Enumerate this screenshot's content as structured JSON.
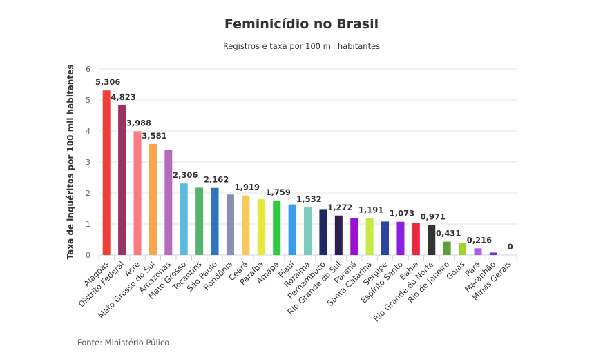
{
  "chart_data": {
    "type": "bar",
    "title": "Feminicídio no Brasil",
    "subtitle": "Registros e taxa por 100 mil habitantes",
    "ylabel": "Taxa de inquéritos por 100 mil habitantes",
    "xlabel": "",
    "ylim": [
      0,
      6
    ],
    "yticks": [
      "0",
      "1",
      "2",
      "3",
      "4",
      "5",
      "6"
    ],
    "grid": true,
    "categories": [
      "Alagoas",
      "Distrito Federal",
      "Acre",
      "Mato Grosso do Sul",
      "Amazonas",
      "Mato Grosso",
      "Tocantins",
      "São Paulo",
      "Rondônia",
      "Ceará",
      "Paraíba",
      "Amapá",
      "Piauí",
      "Roraima",
      "Pernambuco",
      "Rio Grande do Sul",
      "Paraná",
      "Santa Catarina",
      "Sergipe",
      "Espírito Santo",
      "Bahia",
      "Rio Grande do Norte",
      "Rio de Janeiro",
      "Goiás",
      "Pará",
      "Maranhão",
      "Minas Gerais"
    ],
    "values": [
      5.306,
      4.823,
      3.988,
      3.581,
      3.4,
      2.306,
      2.17,
      2.162,
      1.95,
      1.919,
      1.8,
      1.759,
      1.63,
      1.532,
      1.48,
      1.272,
      1.2,
      1.191,
      1.08,
      1.073,
      1.04,
      0.971,
      0.431,
      0.38,
      0.216,
      0.08,
      0
    ],
    "data_labels": [
      "5,306",
      "4,823",
      "3,988",
      "3,581",
      "",
      "2,306",
      "",
      "2,162",
      "",
      "1,919",
      "",
      "1,759",
      "",
      "1,532",
      "",
      "1,272",
      "",
      "1,191",
      "",
      "1,073",
      "",
      "0,971",
      "0,431",
      "",
      "0,216",
      "",
      "0"
    ],
    "colors": [
      "#ee4036",
      "#993366",
      "#fc7b82",
      "#fba44a",
      "#b56cb9",
      "#5bbbe0",
      "#55b36b",
      "#2f74be",
      "#8b8eae",
      "#f9c95c",
      "#e8e83a",
      "#2dcc3c",
      "#3a9de9",
      "#7ccbbd",
      "#1d2a63",
      "#2e1f4f",
      "#9a11d0",
      "#c6ea42",
      "#2e44a1",
      "#8c1fdd",
      "#e8293f",
      "#333333",
      "#5c9f3e",
      "#a6d02a",
      "#b25be3",
      "#6a35e6",
      "#999999"
    ]
  },
  "source": "Fonte: Ministério Púlico"
}
